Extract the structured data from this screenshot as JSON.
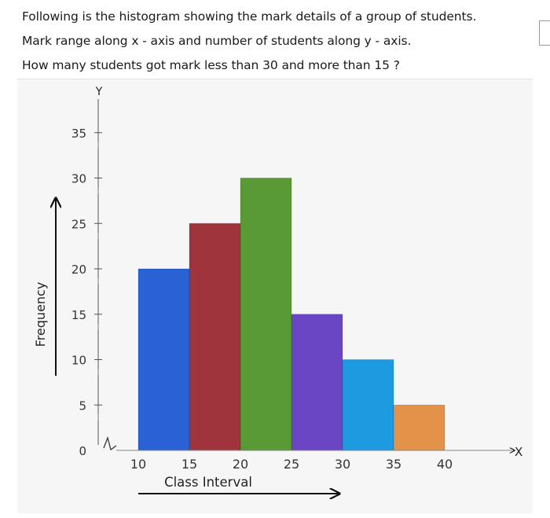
{
  "question": {
    "line1": "Following is the histogram showing the mark details of a group of students.",
    "line2": "Mark range along x - axis and number of students along y - axis.",
    "line3": "How many students got mark less than 30  and more than 15 ?"
  },
  "chart_data": {
    "type": "bar",
    "subtype": "histogram",
    "bins": [
      [
        10,
        15
      ],
      [
        15,
        20
      ],
      [
        20,
        25
      ],
      [
        25,
        30
      ],
      [
        30,
        35
      ],
      [
        35,
        40
      ]
    ],
    "values": [
      20,
      25,
      30,
      15,
      10,
      5
    ],
    "colors": [
      "#2a62d6",
      "#a0343c",
      "#5a9a36",
      "#6a46c4",
      "#1e9ae0",
      "#e4914a"
    ],
    "xlabel": "Class Interval",
    "ylabel": "Frequency",
    "x_axis_name": "X",
    "y_axis_name": "Y",
    "x_ticks": [
      "10",
      "15",
      "20",
      "25",
      "30",
      "35",
      "40"
    ],
    "y_ticks": [
      "0",
      "5",
      "10",
      "15",
      "20",
      "25",
      "30",
      "35"
    ],
    "ylim": [
      0,
      37
    ],
    "grid": false
  }
}
